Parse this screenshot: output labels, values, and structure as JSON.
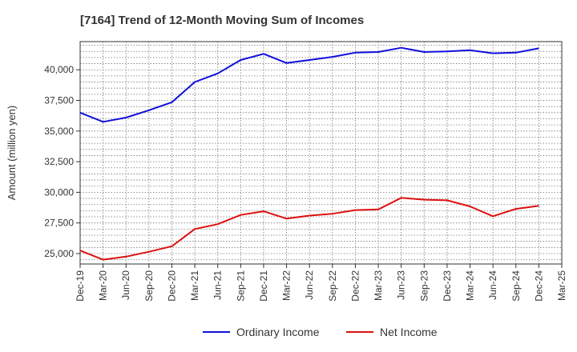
{
  "chart_data": {
    "type": "line",
    "title": "[7164]  Trend of 12-Month Moving Sum of Incomes",
    "xlabel": "",
    "ylabel": "Amount (million yen)",
    "ylim": [
      24150,
      42300
    ],
    "yticks": [
      25000,
      27500,
      30000,
      32500,
      35000,
      37500,
      40000
    ],
    "ytick_labels": [
      "25,000",
      "27,500",
      "30,000",
      "32,500",
      "35,000",
      "37,500",
      "40,000"
    ],
    "categories": [
      "Dec-19",
      "Mar-20",
      "Jun-20",
      "Sep-20",
      "Dec-20",
      "Mar-21",
      "Jun-21",
      "Sep-21",
      "Dec-21",
      "Mar-22",
      "Jun-22",
      "Sep-22",
      "Dec-22",
      "Mar-23",
      "Jun-23",
      "Sep-23",
      "Dec-23",
      "Mar-24",
      "Jun-24",
      "Sep-24",
      "Dec-24",
      "Mar-25"
    ],
    "grid": true,
    "legend_position": "bottom",
    "series": [
      {
        "name": "Ordinary Income",
        "color": "#1010dd",
        "values": [
          36500,
          35750,
          36100,
          36700,
          37350,
          39000,
          39700,
          40800,
          41300,
          40550,
          40800,
          41050,
          41400,
          41450,
          41800,
          41450,
          41500,
          41600,
          41350,
          41400,
          41750,
          null
        ]
      },
      {
        "name": "Net Income",
        "color": "#dd1010",
        "values": [
          25250,
          24500,
          24750,
          25150,
          25600,
          27000,
          27400,
          28150,
          28450,
          27850,
          28100,
          28250,
          28550,
          28600,
          29550,
          29400,
          29350,
          28850,
          28050,
          28650,
          28900,
          null
        ]
      }
    ]
  }
}
